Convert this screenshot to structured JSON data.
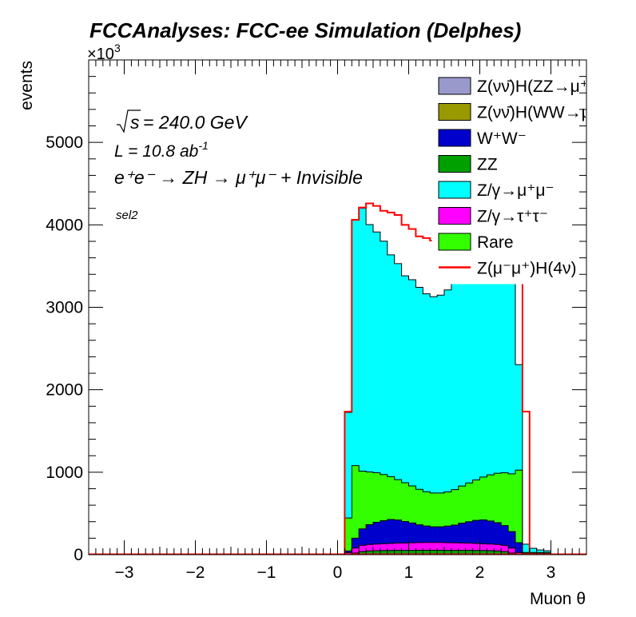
{
  "chart_data": {
    "type": "histogram",
    "stacked": true,
    "title": "FCCAnalyses: FCC-ee Simulation (Delphes)",
    "xlabel": "Muon θ",
    "ylabel": "events",
    "y_multiplier": "×10",
    "y_multiplier_exp": "3",
    "xlim": [
      -3.5,
      3.5
    ],
    "ylim": [
      0,
      6000
    ],
    "x_ticks": [
      -3,
      -2,
      -1,
      0,
      1,
      2,
      3
    ],
    "x_tick_labels": [
      "−3",
      "−2",
      "−1",
      "0",
      "1",
      "2",
      "3"
    ],
    "y_ticks": [
      0,
      1000,
      2000,
      3000,
      4000,
      5000
    ],
    "y_tick_labels": [
      "0",
      "1000",
      "2000",
      "3000",
      "4000",
      "5000"
    ],
    "bin_edges_start": 0.1,
    "bin_width": 0.1,
    "annotations": {
      "sqrt_s": "= 240.0 GeV",
      "lumi": "L = 10.8 ab",
      "lumi_exp": "-1",
      "process": "e⁺e⁻ → ZH → μ⁺μ⁻ + Invisible",
      "selection": "sel2"
    },
    "legend_position": "top-right",
    "series": [
      {
        "name": "ZZ",
        "color": "#00a000",
        "values": [
          5,
          20,
          38,
          45,
          48,
          50,
          51,
          52,
          52,
          52,
          53,
          53,
          53,
          53,
          52,
          52,
          52,
          52,
          51,
          50,
          48,
          45,
          38,
          20,
          5,
          2,
          2,
          2,
          2
        ]
      },
      {
        "name": "Z/γ→τ⁺τ⁻",
        "color": "#ff00ff",
        "values": [
          20,
          60,
          75,
          78,
          80,
          82,
          85,
          88,
          90,
          92,
          94,
          95,
          95,
          95,
          94,
          92,
          90,
          88,
          85,
          82,
          80,
          78,
          75,
          60,
          20,
          5,
          5,
          5,
          5
        ]
      },
      {
        "name": "W⁺W⁻",
        "color": "#0000cc",
        "values": [
          20,
          120,
          200,
          240,
          265,
          280,
          290,
          280,
          260,
          240,
          215,
          200,
          190,
          190,
          200,
          215,
          240,
          260,
          280,
          290,
          280,
          265,
          240,
          200,
          120,
          10,
          10,
          10,
          10
        ]
      },
      {
        "name": "Rare",
        "color": "#33ff00",
        "values": [
          400,
          880,
          700,
          640,
          600,
          560,
          520,
          490,
          470,
          450,
          430,
          415,
          410,
          410,
          415,
          430,
          450,
          470,
          490,
          520,
          560,
          600,
          640,
          700,
          880,
          10,
          10,
          10,
          10
        ]
      },
      {
        "name": "Z/γ→μ⁺μ⁻",
        "color": "#00ffff",
        "values": [
          1280,
          2985,
          3190,
          3000,
          2920,
          2830,
          2690,
          2620,
          2510,
          2500,
          2450,
          2400,
          2380,
          2400,
          2450,
          2500,
          2510,
          2620,
          2690,
          2830,
          2920,
          3000,
          3190,
          2985,
          1280,
          100,
          50,
          30,
          20
        ]
      },
      {
        "name": "Z(νν̄)H(ZZ→μ⁺μ⁻ν⁺ν⁻)",
        "color": "#9999cc",
        "values": []
      },
      {
        "name": "Z(νν̄)H(WW→μ⁺νμ⁻ν)",
        "color": "#999900",
        "values": []
      },
      {
        "name": "Z(μ⁻μ⁺)H(4ν)",
        "color": "#ff0000",
        "line": true,
        "values": [
          1735,
          4060,
          4210,
          4260,
          4230,
          4170,
          4150,
          4120,
          4000,
          3950,
          3860,
          3840,
          3810,
          3810,
          3830,
          3870,
          3900,
          3980,
          4050,
          4110,
          4170,
          4230,
          4290,
          4210,
          4060,
          1735,
          0,
          0,
          0
        ]
      }
    ]
  },
  "legend": [
    {
      "label": "Z(νν̄)H(ZZ→μ⁺μ⁻ν⁺ν⁻)",
      "color": "#9999cc",
      "kind": "box"
    },
    {
      "label": "Z(νν̄)H(WW→μ⁺νμ⁻ν)",
      "color": "#999900",
      "kind": "box"
    },
    {
      "label": "W⁺W⁻",
      "color": "#0000cc",
      "kind": "box"
    },
    {
      "label": "ZZ",
      "color": "#00a000",
      "kind": "box"
    },
    {
      "label": "Z/γ→μ⁺μ⁻",
      "color": "#00ffff",
      "kind": "box"
    },
    {
      "label": "Z/γ→τ⁺τ⁻",
      "color": "#ff00ff",
      "kind": "box"
    },
    {
      "label": "Rare",
      "color": "#33ff00",
      "kind": "box"
    },
    {
      "label": "Z(μ⁻μ⁺)H(4ν)",
      "color": "#ff0000",
      "kind": "line"
    }
  ]
}
